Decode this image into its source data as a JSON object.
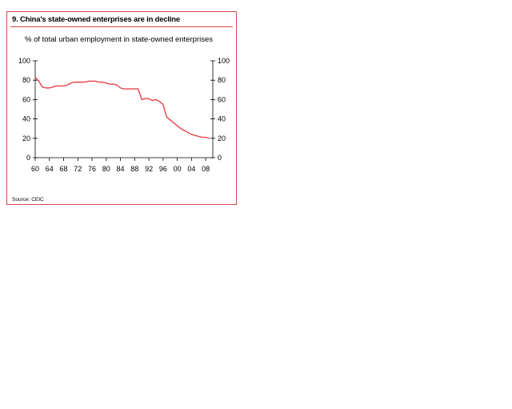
{
  "chart_data": {
    "type": "line",
    "title": "9. China's state-owned enterprises are in decline",
    "subtitle": "% of total urban employment in state-owned enterprises",
    "source": "Source: CEIC",
    "xlabel": "",
    "ylabel": "",
    "xlim": [
      1960,
      2010
    ],
    "ylim": [
      0,
      100
    ],
    "x_ticks": [
      1960,
      1964,
      1968,
      1972,
      1976,
      1980,
      1984,
      1988,
      1992,
      1996,
      2000,
      2004,
      2008
    ],
    "x_tick_labels": [
      "60",
      "64",
      "68",
      "72",
      "76",
      "80",
      "84",
      "88",
      "92",
      "96",
      "00",
      "04",
      "08"
    ],
    "y_ticks": [
      0,
      20,
      40,
      60,
      80,
      100
    ],
    "y_tick_labels": [
      "0",
      "20",
      "40",
      "60",
      "80",
      "100"
    ],
    "right_axis": true,
    "grid": false,
    "line_color": "#e8434a",
    "series": [
      {
        "x": [
          1960,
          1961,
          1962,
          1963,
          1964,
          1965,
          1966,
          1967,
          1968,
          1969,
          1970,
          1971,
          1972,
          1973,
          1974,
          1975,
          1976,
          1977,
          1978,
          1979,
          1980,
          1981,
          1982,
          1983,
          1984,
          1985,
          1986,
          1987,
          1988,
          1989,
          1990,
          1991,
          1992,
          1993,
          1994,
          1995,
          1996,
          1997,
          1998,
          1999,
          2000,
          2001,
          2002,
          2003,
          2004,
          2005,
          2006,
          2007,
          2008,
          2009
        ],
        "values": [
          83,
          79,
          73,
          72,
          72,
          73,
          74,
          74,
          74,
          75,
          77,
          78,
          78,
          78,
          78,
          79,
          79,
          79,
          78,
          78,
          77,
          76,
          76,
          75,
          72,
          71,
          71,
          71,
          71,
          71,
          60,
          61,
          61,
          59,
          60,
          58,
          55,
          42,
          39,
          36,
          33,
          30,
          28,
          26,
          24,
          23,
          22,
          21,
          21,
          20
        ]
      }
    ]
  }
}
